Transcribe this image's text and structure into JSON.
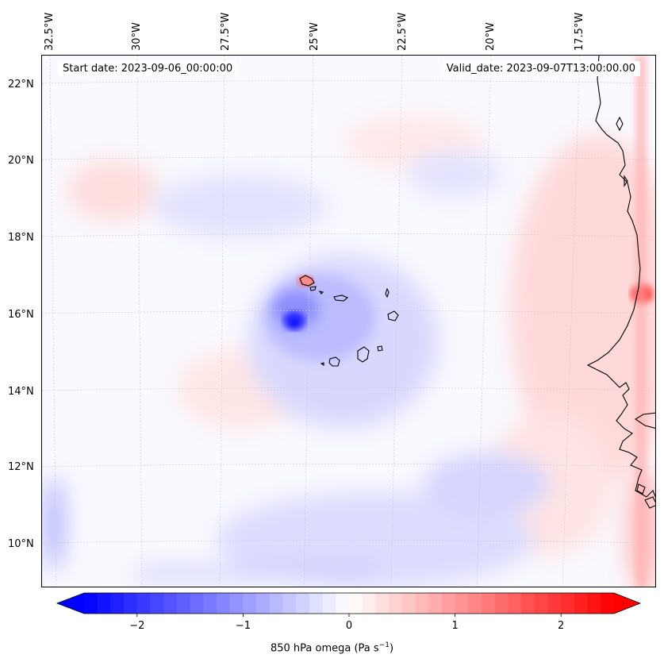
{
  "map": {
    "start_date": "Start date: 2023-09-06_00:00:00",
    "valid_date": "Valid_date: 2023-09-07T13:00:00.00",
    "longitude_labels": [
      "32.5°W",
      "30°W",
      "27.5°W",
      "25°W",
      "22.5°W",
      "20°W",
      "17.5°W"
    ],
    "latitude_labels": [
      "22°N",
      "20°N",
      "18°N",
      "16°N",
      "14°N",
      "12°N",
      "10°N"
    ],
    "extent": {
      "lon_min": -32.6,
      "lon_max": -15.2,
      "lat_min": 8.9,
      "lat_max": 22.8
    },
    "features": [
      {
        "name": "Cabo Verde islands",
        "type": "coastline"
      },
      {
        "name": "West African coast",
        "type": "coastline"
      }
    ],
    "field_extremes": [
      {
        "name": "strong ascent south of Cabo Verde",
        "lon": -25.5,
        "lat": 15.8,
        "omega": -2.4
      },
      {
        "name": "strong descent near Mauritanian coast",
        "lon": -15.4,
        "lat": 16.5,
        "omega": 2.4
      }
    ]
  },
  "colorbar": {
    "label_main": "850 hPa omega (Pa s",
    "label_exp": "−1",
    "label_close": ")",
    "tick_labels": [
      "−2",
      "−1",
      "0",
      "1",
      "2"
    ],
    "tick_values": [
      -2,
      -1,
      0,
      1,
      2
    ],
    "range": [
      -2.5,
      2.5
    ],
    "colors": {
      "negative": "#0000ff",
      "neutral": "#ffffff",
      "positive": "#ff0000"
    }
  }
}
